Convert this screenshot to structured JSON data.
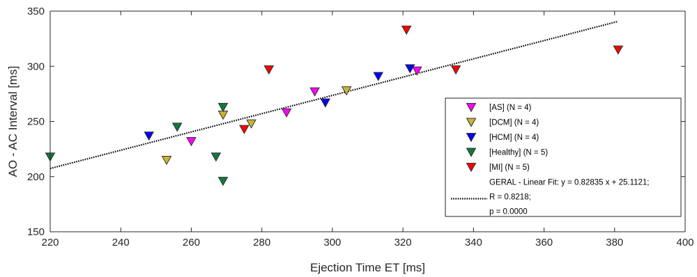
{
  "chart_data": {
    "type": "scatter",
    "title": "",
    "xlabel": "Ejection Time ET [ms]",
    "ylabel": "AO - AC Interval [ms]",
    "xlim": [
      220,
      400
    ],
    "ylim": [
      150,
      350
    ],
    "xticks": [
      220,
      240,
      260,
      280,
      300,
      320,
      340,
      360,
      380,
      400
    ],
    "yticks": [
      150,
      200,
      250,
      300,
      350
    ],
    "grid": false,
    "legend_position": "lower-right",
    "series": [
      {
        "name": "[AS]  (N = 4)",
        "color": "#ff00ff",
        "marker": "triangle-down",
        "points": [
          [
            260,
            232
          ],
          [
            287,
            258
          ],
          [
            295,
            277
          ],
          [
            324,
            296
          ]
        ]
      },
      {
        "name": "[DCM]  (N = 4)",
        "color": "#c8b432",
        "marker": "triangle-down",
        "points": [
          [
            253,
            215
          ],
          [
            269,
            256
          ],
          [
            277,
            248
          ],
          [
            304,
            278
          ]
        ]
      },
      {
        "name": "[HCM]  (N = 4)",
        "color": "#0000ff",
        "marker": "triangle-down",
        "points": [
          [
            248,
            237
          ],
          [
            298,
            267
          ],
          [
            313,
            291
          ],
          [
            322,
            298
          ]
        ]
      },
      {
        "name": "[Healthy]  (N = 5)",
        "color": "#0e7a3c",
        "marker": "triangle-down",
        "points": [
          [
            220,
            218
          ],
          [
            256,
            245
          ],
          [
            267,
            218
          ],
          [
            269,
            196
          ],
          [
            269,
            263
          ]
        ]
      },
      {
        "name": "[MI]  (N = 5)",
        "color": "#ff0000",
        "marker": "triangle-down",
        "points": [
          [
            275,
            243
          ],
          [
            282,
            297
          ],
          [
            321,
            333
          ],
          [
            335,
            297
          ],
          [
            381,
            315
          ]
        ]
      }
    ],
    "fit": {
      "label_line1": "GERAL - Linear Fit: y = 0.82835 x + 25.1121;",
      "label_line2": "R = 0.8218;",
      "label_line3": "p = 0.0000",
      "slope": 0.82835,
      "intercept": 25.1121,
      "x_range": [
        220,
        381
      ],
      "style": "dotted",
      "color": "#000000"
    }
  }
}
